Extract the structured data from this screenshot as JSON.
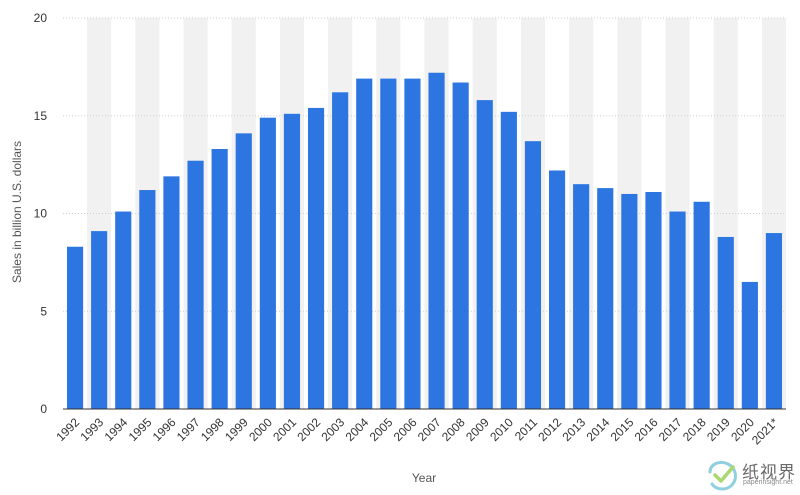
{
  "chart_data": {
    "type": "bar",
    "title": "",
    "xlabel": "Year",
    "ylabel": "Sales in billion U.S. dollars",
    "ylim": [
      0,
      20
    ],
    "yticks": [
      0,
      5,
      10,
      15,
      20
    ],
    "grid": true,
    "categories": [
      "1992",
      "1993",
      "1994",
      "1995",
      "1996",
      "1997",
      "1998",
      "1999",
      "2000",
      "2001",
      "2002",
      "2003",
      "2004",
      "2005",
      "2006",
      "2007",
      "2008",
      "2009",
      "2010",
      "2011",
      "2012",
      "2013",
      "2014",
      "2015",
      "2016",
      "2017",
      "2018",
      "2019",
      "2020",
      "2021*"
    ],
    "values": [
      8.3,
      9.1,
      10.1,
      11.2,
      11.9,
      12.7,
      13.3,
      14.1,
      14.9,
      15.1,
      15.4,
      16.2,
      16.9,
      16.9,
      16.9,
      17.2,
      16.7,
      15.8,
      15.2,
      13.7,
      12.2,
      11.5,
      11.3,
      11.0,
      11.1,
      10.1,
      10.6,
      8.8,
      6.5,
      9.0
    ],
    "bar_color": "#2d76e1",
    "band_color": "#f1f1f1"
  },
  "watermark": {
    "brand": "纸视界",
    "site": "paperinsight.net",
    "icon": "checkmark-logo-icon"
  }
}
